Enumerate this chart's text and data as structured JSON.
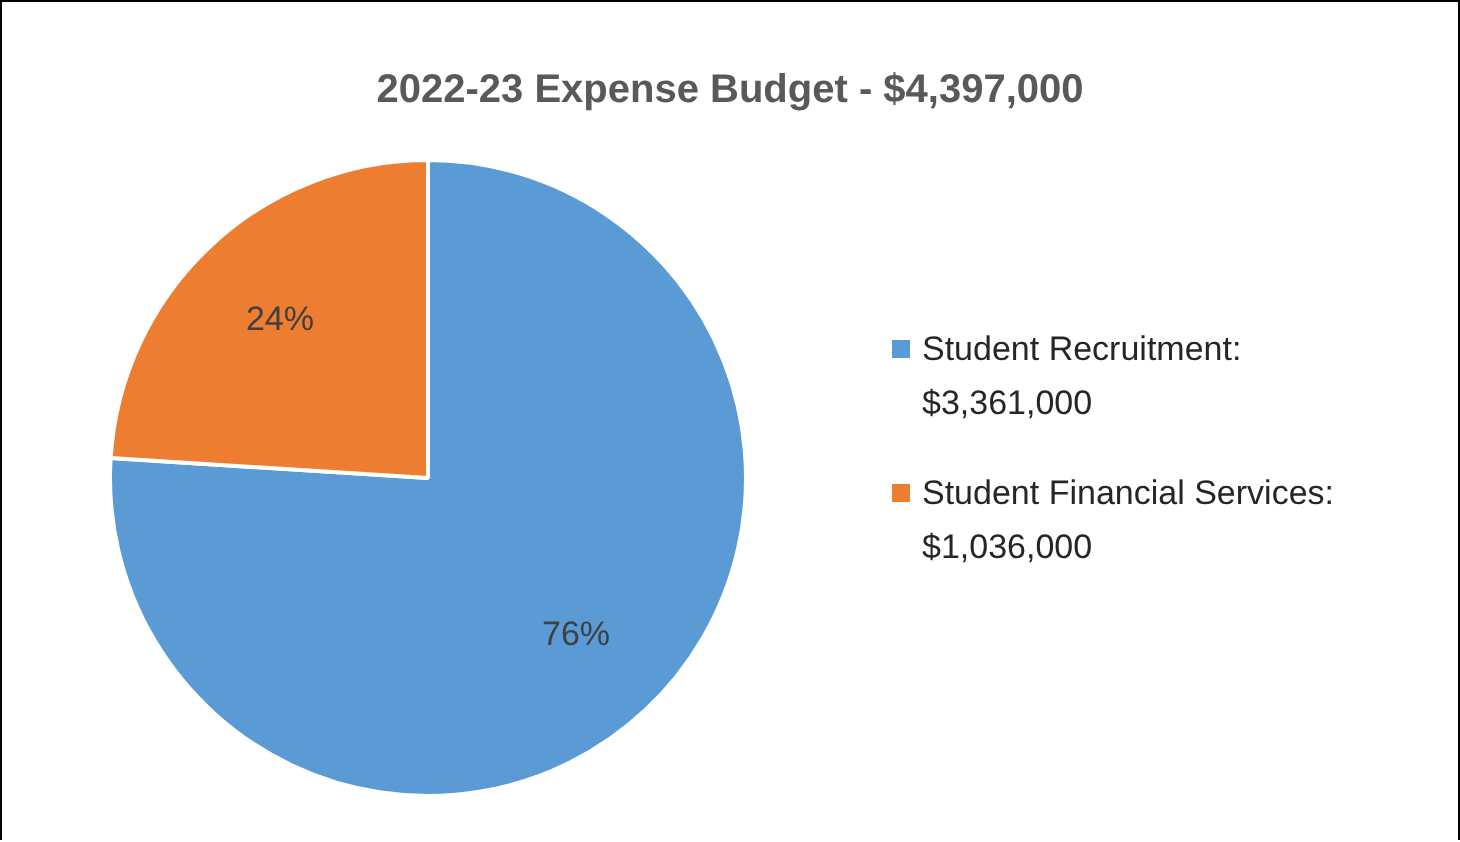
{
  "chart_data": {
    "type": "pie",
    "title": "2022-23 Expense Budget - $4,397,000",
    "categories": [
      "Student Recruitment: $3,361,000",
      "Student Financial Services: $1,036,000"
    ],
    "values": [
      76,
      24
    ],
    "colors": [
      "#5b9bd5",
      "#ed7d31"
    ],
    "value_labels": [
      "76%",
      "24%"
    ],
    "legend": "right"
  }
}
